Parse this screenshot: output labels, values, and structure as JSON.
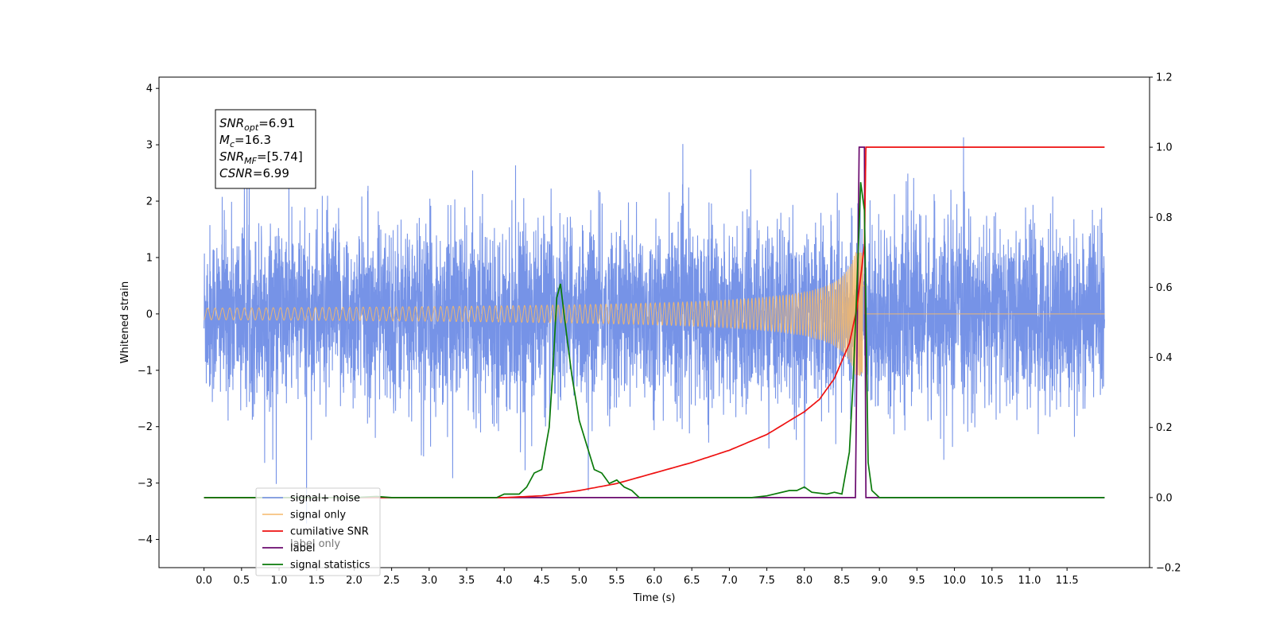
{
  "chart_data": {
    "type": "line",
    "title": "",
    "xlabel": "Time (s)",
    "ylabel": "Whitened strain",
    "xlim": [
      -0.6,
      12.6
    ],
    "ylim_left": [
      -4.5,
      4.2
    ],
    "ylim_right": [
      -0.2,
      1.2
    ],
    "x_ticks": [
      "0.0",
      "0.5",
      "1.0",
      "1.5",
      "2.0",
      "2.5",
      "3.0",
      "3.5",
      "4.0",
      "4.5",
      "5.0",
      "5.5",
      "6.0",
      "6.5",
      "7.0",
      "7.5",
      "8.0",
      "8.5",
      "9.0",
      "9.5",
      "10.0",
      "10.5",
      "11.0",
      "11.5"
    ],
    "y_ticks_left": [
      "−4",
      "−3",
      "−2",
      "−1",
      "0",
      "1",
      "2",
      "3",
      "4"
    ],
    "y_ticks_right": [
      "−0.2",
      "0.0",
      "0.2",
      "0.4",
      "0.6",
      "0.8",
      "1.0",
      "1.2"
    ],
    "grid": false,
    "legend_position": "lower-left",
    "series": [
      {
        "name": "signal+ noise",
        "axis": "left",
        "color": "#6f8de6",
        "description_values": "noise band roughly ±2.3 around 0, spikes up to 3.8 and down to -4.1",
        "x_range": [
          0.0,
          12.0
        ]
      },
      {
        "name": "signal only",
        "axis": "left",
        "color": "#f5b96a",
        "chirp_peak_time": 8.8,
        "chirp_peak_amplitude": 1.1
      },
      {
        "name": "cumilative SNR",
        "axis": "right",
        "color": "#ee1111",
        "x": [
          0.0,
          4.0,
          4.5,
          5.0,
          5.5,
          6.0,
          6.5,
          7.0,
          7.5,
          8.0,
          8.2,
          8.4,
          8.6,
          8.7,
          8.8,
          8.82,
          12.0
        ],
        "values": [
          0.0,
          0.0,
          0.005,
          0.02,
          0.04,
          0.07,
          0.1,
          0.135,
          0.18,
          0.245,
          0.28,
          0.34,
          0.44,
          0.54,
          0.72,
          1.0,
          1.0
        ]
      },
      {
        "name": "label",
        "axis": "right",
        "color": "#6a0a6e",
        "x": [
          0.0,
          8.68,
          8.73,
          8.8,
          8.82,
          12.0
        ],
        "values": [
          0.0,
          0.0,
          1.0,
          1.0,
          0.0,
          0.0
        ]
      },
      {
        "name": "signal statistics",
        "axis": "right",
        "color": "#0a7a0a",
        "x": [
          0.0,
          2.0,
          2.3,
          2.5,
          3.9,
          4.0,
          4.2,
          4.3,
          4.4,
          4.5,
          4.6,
          4.65,
          4.7,
          4.75,
          4.8,
          4.9,
          5.0,
          5.1,
          5.2,
          5.3,
          5.4,
          5.5,
          5.6,
          5.7,
          5.8,
          6.0,
          7.3,
          7.5,
          7.8,
          7.9,
          8.0,
          8.1,
          8.3,
          8.4,
          8.5,
          8.6,
          8.65,
          8.7,
          8.75,
          8.8,
          8.85,
          8.9,
          9.0,
          12.0
        ],
        "values": [
          0.0,
          0.0,
          0.003,
          0.0,
          0.0,
          0.01,
          0.01,
          0.03,
          0.07,
          0.08,
          0.2,
          0.37,
          0.57,
          0.61,
          0.52,
          0.35,
          0.22,
          0.15,
          0.08,
          0.07,
          0.04,
          0.05,
          0.03,
          0.02,
          0.0,
          0.0,
          0.0,
          0.005,
          0.02,
          0.02,
          0.03,
          0.015,
          0.01,
          0.015,
          0.01,
          0.13,
          0.33,
          0.6,
          0.9,
          0.82,
          0.1,
          0.02,
          0.0,
          0.0
        ]
      }
    ],
    "annotation_box": {
      "lines": [
        {
          "label": "SNR",
          "sub": "opt",
          "value": "=6.91"
        },
        {
          "label": "M",
          "sub": "c",
          "value": "=16.3"
        },
        {
          "label": "SNR",
          "sub": "MF",
          "value": "=[5.74]"
        },
        {
          "label": "CSNR",
          "sub": "",
          "value": "=6.99"
        }
      ]
    },
    "legend_overlap_text": "label only"
  }
}
